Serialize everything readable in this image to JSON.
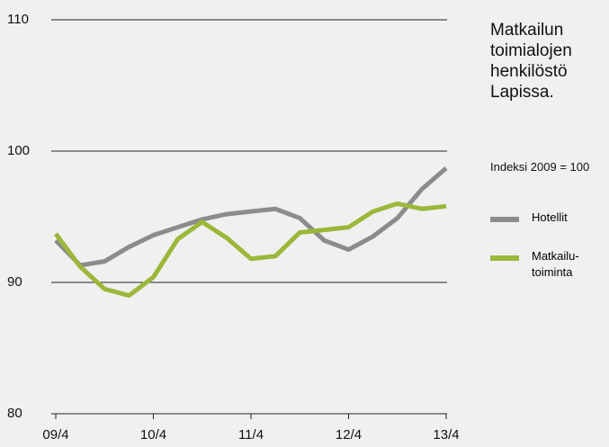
{
  "chart_data": {
    "type": "line",
    "title": "Matkailun toimialojen henkilöstö Lapissa.",
    "subtitle": "Indeksi 2009 = 100",
    "categories": [
      "09/4",
      null,
      null,
      null,
      "10/4",
      null,
      null,
      null,
      "11/4",
      null,
      null,
      null,
      "12/4",
      null,
      null,
      null,
      "13/4"
    ],
    "series": [
      {
        "name": "Hotellit",
        "color": "#8c8c8c",
        "values": [
          93.2,
          91.3,
          91.6,
          92.7,
          93.6,
          94.2,
          94.8,
          95.2,
          95.4,
          95.6,
          94.9,
          93.2,
          92.5,
          93.5,
          94.9,
          97.1,
          98.7
        ]
      },
      {
        "name": "Matkailu-toiminta",
        "color": "#9bb83a",
        "values": [
          93.7,
          91.2,
          89.5,
          89.0,
          90.4,
          93.3,
          94.6,
          93.4,
          91.8,
          92.0,
          93.8,
          94.0,
          94.2,
          95.4,
          96.0,
          95.6,
          95.8
        ]
      }
    ],
    "ylim": [
      80,
      110
    ],
    "yticks": [
      80,
      90,
      100,
      110
    ],
    "grid": true
  }
}
